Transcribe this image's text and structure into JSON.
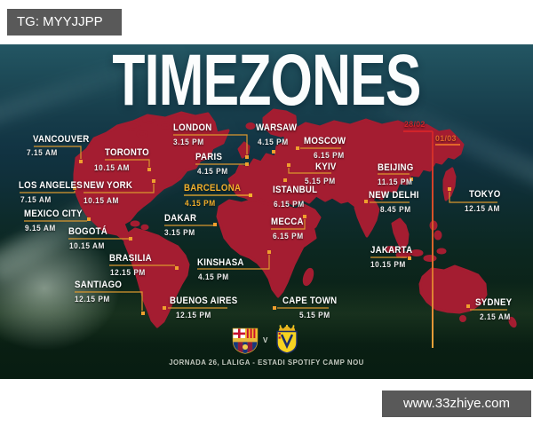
{
  "watermarks": {
    "telegram": "TG: MYYJJPP",
    "website": "www.33zhiye.com"
  },
  "title": "TIMEZONES",
  "date_line": {
    "left_date": "28/02",
    "right_date": "01/03"
  },
  "cities": [
    {
      "name": "VANCOUVER",
      "time": "7.15 AM",
      "highlight": false
    },
    {
      "name": "TORONTO",
      "time": "10.15 AM",
      "highlight": false
    },
    {
      "name": "LOS ANGELES",
      "time": "7.15 AM",
      "highlight": false
    },
    {
      "name": "NEW YORK",
      "time": "10.15 AM",
      "highlight": false
    },
    {
      "name": "MEXICO CITY",
      "time": "9.15 AM",
      "highlight": false
    },
    {
      "name": "BOGOTÁ",
      "time": "10.15 AM",
      "highlight": false
    },
    {
      "name": "BRASILIA",
      "time": "12.15 PM",
      "highlight": false
    },
    {
      "name": "SANTIAGO",
      "time": "12.15 PM",
      "highlight": false
    },
    {
      "name": "BUENOS AIRES",
      "time": "12.15 PM",
      "highlight": false
    },
    {
      "name": "LONDON",
      "time": "3.15 PM",
      "highlight": false
    },
    {
      "name": "PARIS",
      "time": "4.15 PM",
      "highlight": false
    },
    {
      "name": "BARCELONA",
      "time": "4.15 PM",
      "highlight": true
    },
    {
      "name": "DAKAR",
      "time": "3.15 PM",
      "highlight": false
    },
    {
      "name": "KINSHASA",
      "time": "4.15 PM",
      "highlight": false
    },
    {
      "name": "WARSAW",
      "time": "4.15 PM",
      "highlight": false
    },
    {
      "name": "MOSCOW",
      "time": "6.15 PM",
      "highlight": false
    },
    {
      "name": "KYIV",
      "time": "5.15 PM",
      "highlight": false
    },
    {
      "name": "ISTANBUL",
      "time": "6.15 PM",
      "highlight": false
    },
    {
      "name": "MECCA",
      "time": "6.15 PM",
      "highlight": false
    },
    {
      "name": "CAPE TOWN",
      "time": "5.15 PM",
      "highlight": false
    },
    {
      "name": "BEIJING",
      "time": "11.15 PM",
      "highlight": false
    },
    {
      "name": "NEW DELHI",
      "time": "8.45 PM",
      "highlight": false
    },
    {
      "name": "TOKYO",
      "time": "12.15 AM",
      "highlight": false
    },
    {
      "name": "JAKARTA",
      "time": "10.15 PM",
      "highlight": false
    },
    {
      "name": "SYDNEY",
      "time": "2.15 AM",
      "highlight": false
    }
  ],
  "footer": {
    "separator": "V",
    "caption": "JORNADA 26, LALIGA - ESTADI SPOTIFY CAMP NOU"
  },
  "icons": {
    "home_crest": "fc-barcelona-crest-icon",
    "away_crest": "villarreal-crest-icon"
  },
  "colors": {
    "map_red": "#a41d31",
    "connector_orange": "#d9972e",
    "dot_orange": "#ef9f2e",
    "highlight_yellow": "#f3b02c",
    "date_red": "#d2232a",
    "date_orange": "#e2662a"
  }
}
